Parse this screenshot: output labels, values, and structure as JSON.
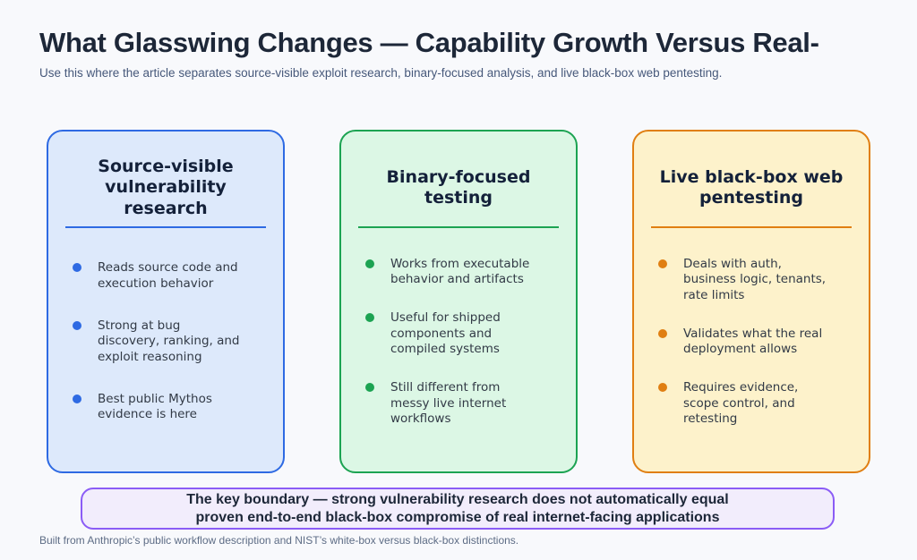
{
  "header": {
    "title": "What Glasswing Changes — Capability Growth Versus Real-",
    "subtitle": "Use this where the article separates source-visible exploit research, binary-focused analysis, and live black-box web pentesting."
  },
  "cards": [
    {
      "title": "Source-visible\nvulnerability\nresearch",
      "accent": "#2e6ae3",
      "bg": "#dde9fb",
      "bullets": [
        "Reads source code and\nexecution behavior",
        "Strong at bug\ndiscovery, ranking, and\nexploit reasoning",
        "Best public Mythos\nevidence is here"
      ]
    },
    {
      "title": "Binary-focused\ntesting",
      "accent": "#1ca352",
      "bg": "#dcf7e5",
      "bullets": [
        "Works from executable\nbehavior and artifacts",
        "Useful for shipped\ncomponents and\ncompiled systems",
        "Still different from\nmessy live internet\nworkflows"
      ]
    },
    {
      "title": "Live black-box web\npentesting",
      "accent": "#e07f12",
      "bg": "#fdf2cb",
      "bullets": [
        "Deals with auth,\nbusiness logic, tenants,\nrate limits",
        "Validates what the real\ndeployment allows",
        "Requires evidence,\nscope control, and\nretesting"
      ]
    }
  ],
  "callout": {
    "text": "The key boundary — strong vulnerability research does not automatically equal\nproven end-to-end black-box compromise of real internet-facing applications",
    "border": "#8b5cf6",
    "bg": "#f2edfc"
  },
  "footer": {
    "note": "Built from Anthropic’s public workflow description and NIST’s white-box versus black-box distinctions."
  }
}
